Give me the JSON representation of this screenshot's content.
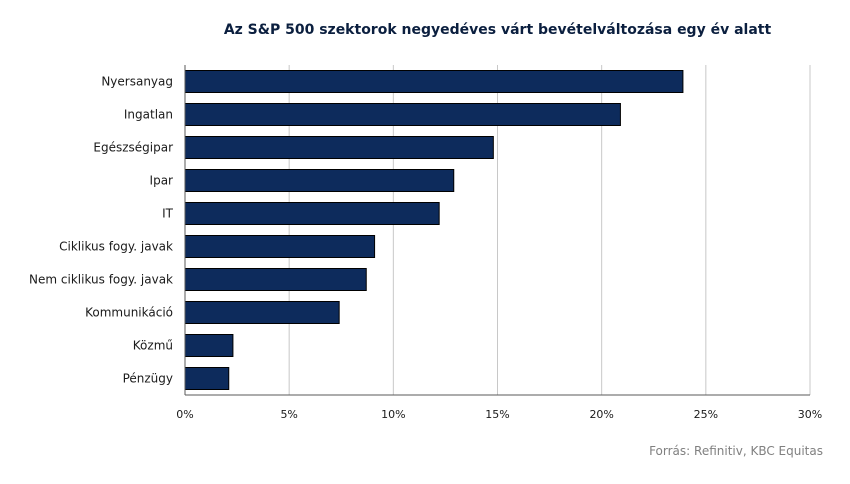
{
  "chart_data": {
    "type": "bar",
    "orientation": "horizontal",
    "title": "Az S&P 500 szektorok negyedéves várt bevételváltozása egy év alatt",
    "categories": [
      "Nyersanyag",
      "Ingatlan",
      "Egészségipar",
      "Ipar",
      "IT",
      "Ciklikus fogy. javak",
      "Nem ciklikus fogy. javak",
      "Kommunikáció",
      "Közmű",
      "Pénzügy"
    ],
    "values": [
      23.9,
      20.9,
      14.8,
      12.9,
      12.2,
      9.1,
      8.7,
      7.4,
      2.3,
      2.1
    ],
    "xlim": [
      0,
      30
    ],
    "xticks": [
      0,
      5,
      10,
      15,
      20,
      25,
      30
    ],
    "xtick_labels": [
      "0%",
      "5%",
      "10%",
      "15%",
      "20%",
      "25%",
      "30%"
    ],
    "grid": "vertical",
    "bar_color": "#0d2b5c"
  },
  "source": "Forrás: Refinitiv, KBC Equitas"
}
